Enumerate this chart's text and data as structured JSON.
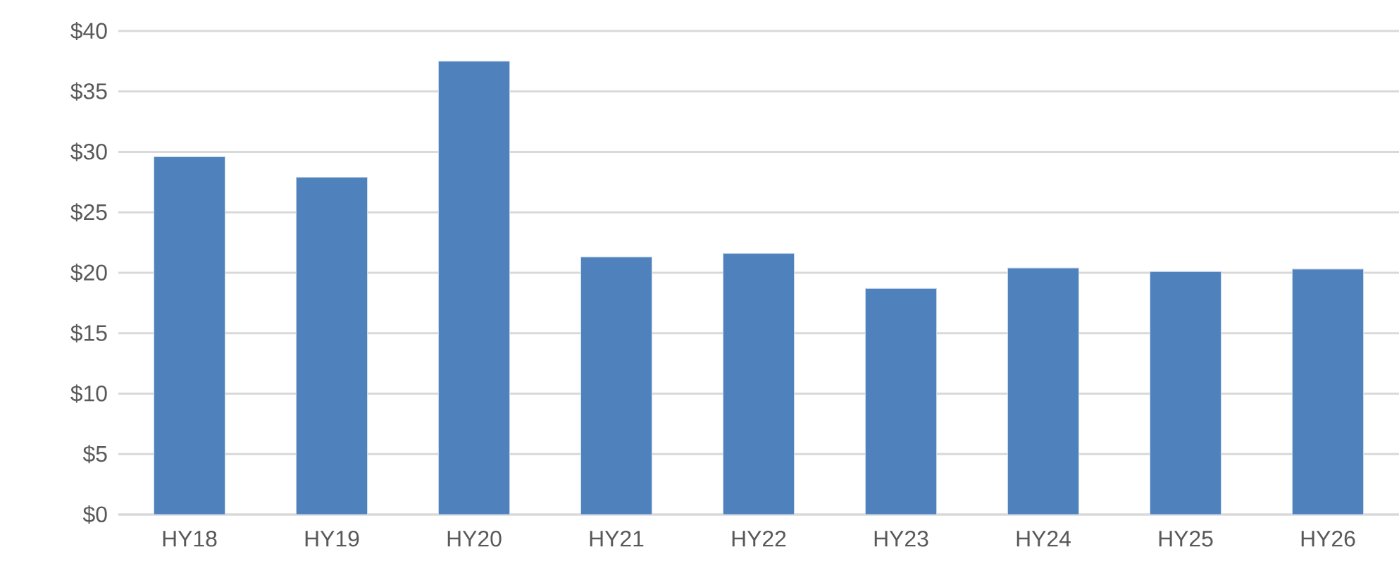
{
  "chart_data": {
    "type": "bar",
    "categories": [
      "HY18",
      "HY19",
      "HY20",
      "HY21",
      "HY22",
      "HY23",
      "HY24",
      "HY25",
      "HY26"
    ],
    "values": [
      29.6,
      27.9,
      37.5,
      21.3,
      21.6,
      18.7,
      20.4,
      20.1,
      20.3
    ],
    "color": "#4f81bd",
    "ylim": [
      0,
      40
    ],
    "yticks": [
      {
        "value": 0,
        "label": "$0"
      },
      {
        "value": 5,
        "label": "$5"
      },
      {
        "value": 10,
        "label": "$10"
      },
      {
        "value": 15,
        "label": "$15"
      },
      {
        "value": 20,
        "label": "$20"
      },
      {
        "value": 25,
        "label": "$25"
      },
      {
        "value": 30,
        "label": "$30"
      },
      {
        "value": 35,
        "label": "$35"
      },
      {
        "value": 40,
        "label": "$40"
      }
    ],
    "grid": "y"
  }
}
